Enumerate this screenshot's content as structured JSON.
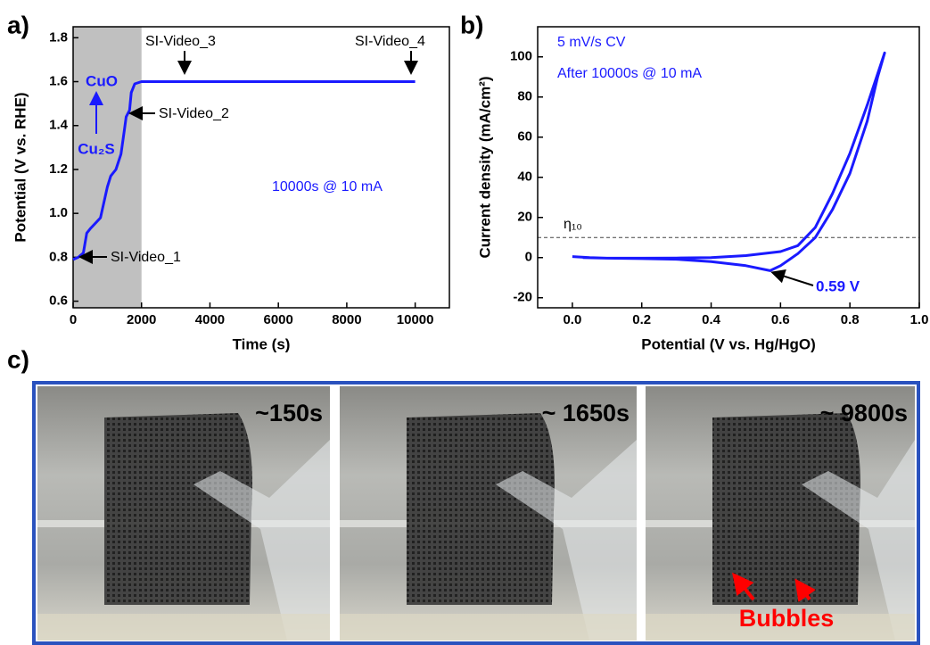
{
  "chart_data": [
    {
      "type": "line",
      "panel_label": "a)",
      "x_label": "Time (s)",
      "y_label": "Potential (V vs. RHE)",
      "xlim": [
        0,
        11000
      ],
      "ylim": [
        0.57,
        1.85
      ],
      "xticks": [
        0,
        2000,
        4000,
        6000,
        8000,
        10000
      ],
      "yticks": [
        0.6,
        0.8,
        {
          "value": 1.0,
          "label": "1.0"
        },
        1.2,
        1.4,
        1.6,
        1.8
      ],
      "shaded_region": [
        0,
        2000
      ],
      "color": "#1a1aff",
      "x": [
        0,
        150,
        300,
        400,
        500,
        800,
        1000,
        1100,
        1250,
        1400,
        1500,
        1550,
        1650,
        1700,
        1800,
        2000,
        4000,
        6000,
        8000,
        10000
      ],
      "values": [
        0.79,
        0.8,
        0.82,
        0.91,
        0.93,
        0.98,
        1.12,
        1.17,
        1.2,
        1.27,
        1.38,
        1.44,
        1.47,
        1.55,
        1.59,
        1.6,
        1.6,
        1.6,
        1.6,
        1.6
      ],
      "annotations": [
        "SI-Video_1",
        "SI-Video_2",
        "SI-Video_3",
        "SI-Video_4",
        "CuO",
        "Cu₂S",
        "10000s @ 10 mA"
      ]
    },
    {
      "type": "line",
      "panel_label": "b)",
      "x_label": "Potential (V vs. Hg/HgO)",
      "y_label": "Current density (mA/cm²)",
      "xlim": [
        -0.1,
        1.0
      ],
      "ylim": [
        -25,
        115
      ],
      "xticks": [
        {
          "value": 0,
          "label": "0.0"
        },
        0.2,
        0.4,
        0.6,
        0.8,
        {
          "value": 1.0,
          "label": "1.0"
        }
      ],
      "yticks": [
        -20,
        0,
        20,
        40,
        60,
        80,
        100
      ],
      "reference_line": 10,
      "color": "#1a1aff",
      "x": [
        0.0,
        0.05,
        0.1,
        0.2,
        0.3,
        0.4,
        0.5,
        0.6,
        0.65,
        0.7,
        0.75,
        0.8,
        0.85,
        0.9,
        0.88,
        0.85,
        0.8,
        0.75,
        0.7,
        0.65,
        0.6,
        0.57,
        0.5,
        0.4,
        0.3,
        0.2,
        0.1,
        0.03
      ],
      "values": [
        0.5,
        0,
        -0.3,
        -0.3,
        -0.2,
        0,
        1,
        3,
        6,
        15,
        32,
        52,
        76,
        102,
        90,
        68,
        42,
        24,
        10,
        2,
        -4,
        -6.5,
        -4,
        -2,
        -0.8,
        -0.5,
        -0.3,
        0
      ],
      "annotations": [
        "5 mV/s CV",
        "After 10000s @ 10 mA",
        "η₁₀",
        "0.59 V"
      ]
    }
  ],
  "photos": {
    "panel_label": "c)",
    "frames": [
      "~150s",
      "~ 1650s",
      "~ 9800s"
    ],
    "annotation": "Bubbles"
  }
}
